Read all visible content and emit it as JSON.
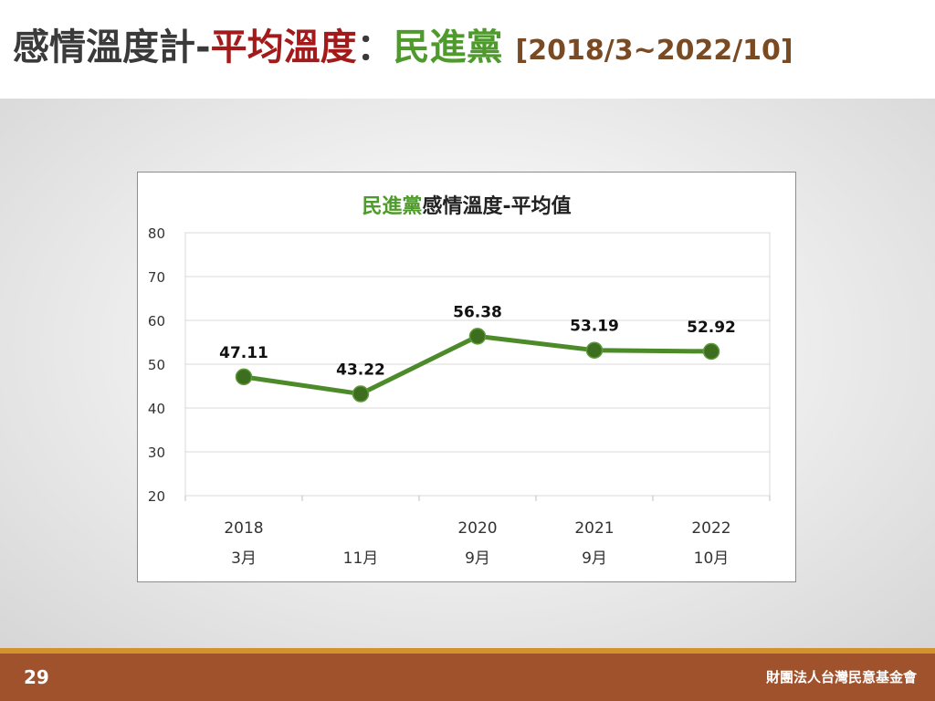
{
  "slide": {
    "title_part1": "感情溫度計-",
    "title_part2": "平均溫度",
    "title_sep": "：",
    "title_part3": "民進黨",
    "title_range": "[2018/3~2022/10]"
  },
  "footer": {
    "page_number": "29",
    "organization": "財團法人台灣民意基金會"
  },
  "colors": {
    "title_dark": "#3a3a3a",
    "title_red": "#a31a1a",
    "title_green": "#4f9a2c",
    "line": "#4d8a2a",
    "marker": "#3d6e1f",
    "footer": "#a0522d",
    "footer_stripe": "#d4922e"
  },
  "chart_data": {
    "type": "line",
    "title_party": "民進黨",
    "title_rest": "感情溫度-平均值",
    "categories_year": [
      "2018",
      "",
      "2020",
      "2021",
      "2022"
    ],
    "categories_month": [
      "3月",
      "11月",
      "9月",
      "9月",
      "10月"
    ],
    "values": [
      47.11,
      43.22,
      56.38,
      53.19,
      52.92
    ],
    "value_labels": [
      "47.11",
      "43.22",
      "56.38",
      "53.19",
      "52.92"
    ],
    "ylim": [
      20,
      80
    ],
    "yticks": [
      20,
      30,
      40,
      50,
      60,
      70,
      80
    ],
    "grid": true,
    "xlabel": "",
    "ylabel": ""
  }
}
